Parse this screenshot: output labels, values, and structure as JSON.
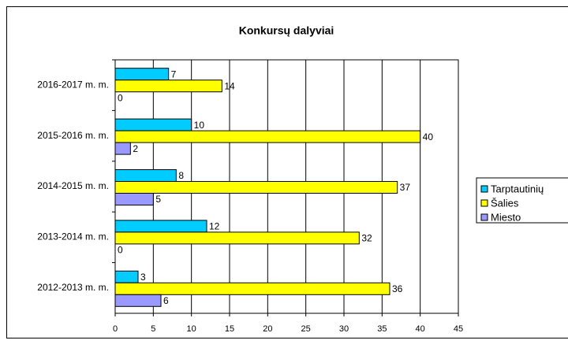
{
  "chart_data": {
    "type": "hbar",
    "title": "Konkursų dalyviai",
    "categories": [
      "2016-2017 m. m.",
      "2015-2016 m. m.",
      "2014-2015 m. m.",
      "2013-2014 m. m.",
      "2012-2013 m. m."
    ],
    "series": [
      {
        "name": "Tarptautinių",
        "color": "#00ccff",
        "values": [
          7,
          10,
          8,
          12,
          3
        ]
      },
      {
        "name": "Šalies",
        "color": "#ffff00",
        "values": [
          14,
          40,
          37,
          32,
          36
        ]
      },
      {
        "name": "Miesto",
        "color": "#9999ff",
        "values": [
          0,
          2,
          5,
          0,
          6
        ]
      }
    ],
    "xlim": [
      0,
      45
    ],
    "xticks": [
      0,
      5,
      10,
      15,
      20,
      25,
      30,
      35,
      40,
      45
    ],
    "grid": true,
    "legend": "right"
  }
}
